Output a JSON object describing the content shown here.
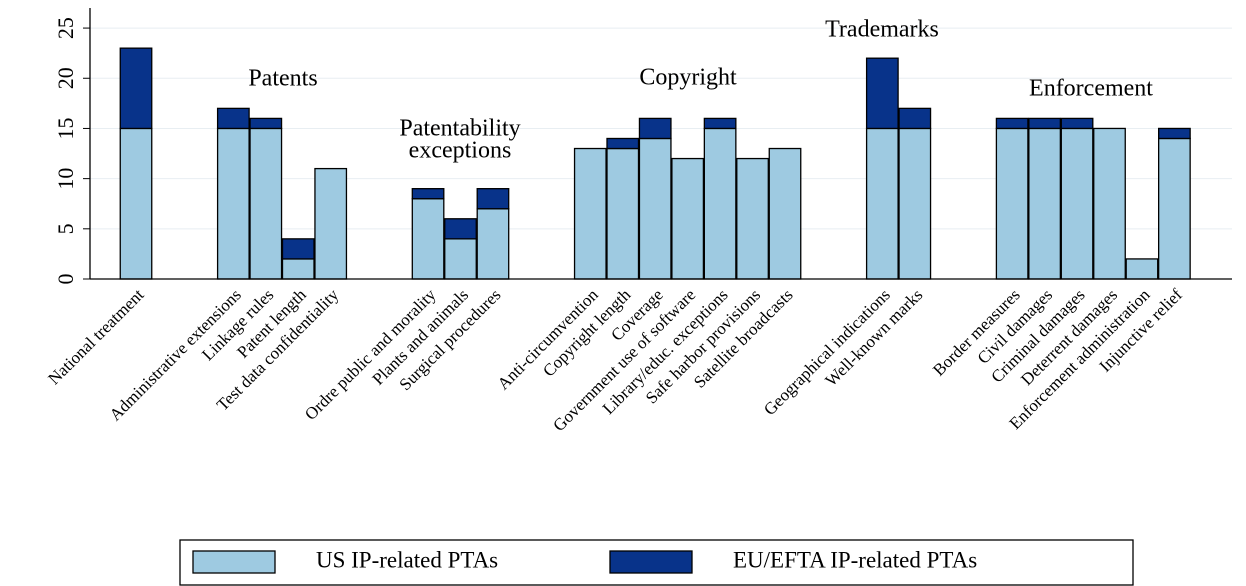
{
  "chart_data": {
    "type": "stacked-bar",
    "categories": [
      "National treatment",
      null,
      null,
      "Administrative extensions",
      "Linkage rules",
      "Patent length",
      "Test data confidentiality",
      null,
      null,
      "Ordre public and morality",
      "Plants and animals",
      "Surgical procedures",
      null,
      null,
      "Anti-circumvention",
      "Copyright length",
      "Coverage",
      "Government use of software",
      "Library/educ. exceptions",
      "Safe harbor provisions",
      "Satellite broadcasts",
      null,
      null,
      "Geographical indications",
      "Well-known marks",
      null,
      null,
      "Border measures",
      "Civil damages",
      "Criminal damages",
      "Deterrent damages",
      "Enforcement administration",
      "Injunctive relief"
    ],
    "series": [
      {
        "name": "US IP-related PTAs",
        "color": "#9ecae1",
        "values": [
          15,
          null,
          null,
          15,
          15,
          2,
          11,
          null,
          null,
          8,
          4,
          7,
          null,
          null,
          13,
          13,
          14,
          12,
          15,
          12,
          13,
          null,
          null,
          15,
          15,
          null,
          null,
          15,
          15,
          15,
          15,
          2,
          14
        ]
      },
      {
        "name": "EU/EFTA IP-related PTAs",
        "color": "#08338a",
        "values": [
          8,
          null,
          null,
          2,
          1,
          2,
          0,
          null,
          null,
          1,
          2,
          2,
          null,
          null,
          0,
          1,
          2,
          0,
          1,
          0,
          0,
          null,
          null,
          7,
          2,
          null,
          null,
          1,
          1,
          1,
          0,
          0,
          1
        ]
      }
    ],
    "annotations": [
      [
        "Patents"
      ],
      [
        "Patentability",
        "exceptions"
      ],
      [
        "Copyright"
      ],
      [
        "Trademarks"
      ],
      [
        "Enforcement"
      ]
    ],
    "ylim": [
      0,
      27
    ],
    "yticks": [
      0,
      5,
      10,
      15,
      20,
      25
    ],
    "grid": true,
    "legend": "bottom"
  }
}
